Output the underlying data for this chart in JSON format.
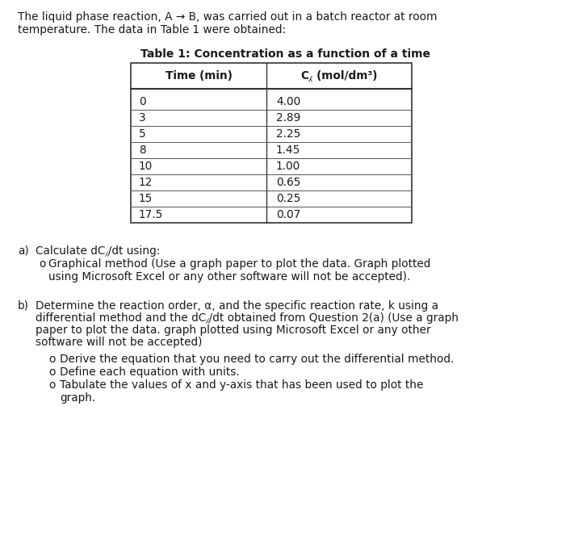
{
  "intro_line1": "The liquid phase reaction, A → B, was carried out in a batch reactor at room",
  "intro_line2": "temperature. The data in Table 1 were obtained:",
  "table_title": "Table 1: Concentration as a function of a time",
  "col1_header": "Time (min)",
  "col2_header": "C⁁ (mol/dm³)",
  "time_data": [
    "0",
    "3",
    "5",
    "8",
    "10",
    "12",
    "15",
    "17.5"
  ],
  "ca_data": [
    "4.00",
    "2.89",
    "2.25",
    "1.45",
    "1.00",
    "0.65",
    "0.25",
    "0.07"
  ],
  "part_a_label": "a)",
  "part_a_line1": "Calculate dC⁁/dt using:",
  "part_a_bullet_line1": "Graphical method (Use a graph paper to plot the data. Graph plotted",
  "part_a_bullet_line2": "using Microsoft Excel or any other software will not be accepted).",
  "part_b_label": "b)",
  "part_b_line1": "Determine the reaction order, α, and the specific reaction rate, k using a",
  "part_b_line2": "differential method and the dC⁁/dt obtained from Question 2(a) (Use a graph",
  "part_b_line3": "paper to plot the data. graph plotted using Microsoft Excel or any other",
  "part_b_line4": "software will not be accepted)",
  "sub_bullet1": "Derive the equation that you need to carry out the differential method.",
  "sub_bullet2": "Define each equation with units.",
  "sub_bullet3a": "Tabulate the values of x and y-axis that has been used to plot the",
  "sub_bullet3b": "graph.",
  "bg_color": "#ffffff",
  "text_color": "#1a1a1a",
  "font_size": 9.8,
  "table_font_size": 9.8
}
